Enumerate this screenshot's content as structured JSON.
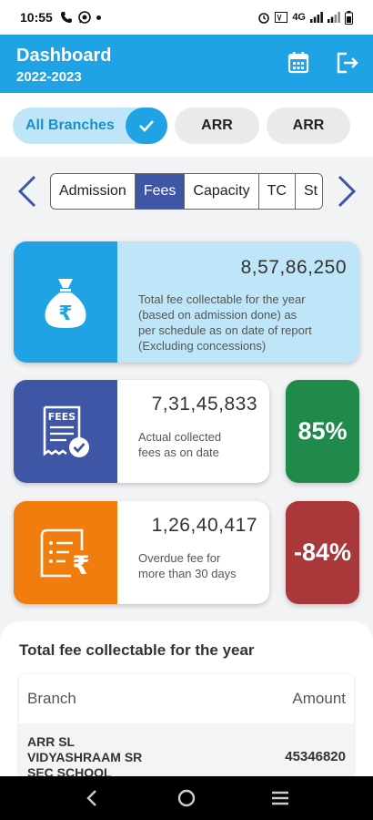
{
  "status_bar": {
    "time": "10:55",
    "network": "4G"
  },
  "header": {
    "title": "Dashboard",
    "year": "2022-2023",
    "icons": [
      "calendar-icon",
      "logout-icon"
    ]
  },
  "branches": {
    "items": [
      {
        "label": "All Branches",
        "selected": true
      },
      {
        "label": "ARR",
        "selected": false
      },
      {
        "label": "ARR",
        "selected": false
      }
    ]
  },
  "tabs": {
    "items": [
      {
        "label": "Admission",
        "active": false
      },
      {
        "label": "Fees",
        "active": true
      },
      {
        "label": "Capacity",
        "active": false
      },
      {
        "label": "TC",
        "active": false
      },
      {
        "label": "St",
        "active": false
      }
    ]
  },
  "cards": {
    "total": {
      "amount": "8,57,86,250",
      "desc_lines": [
        "Total fee collectable for the year",
        "(based on admission done) as",
        "per schedule as on date of report",
        "(Excluding concessions)"
      ],
      "icon": "money-bag-rupee-icon",
      "color": "#1fa3e4"
    },
    "collected": {
      "amount": "7,31,45,833",
      "desc_lines": [
        "Actual collected",
        "fees as on date"
      ],
      "icon": "fees-receipt-icon",
      "color": "#3f56a6",
      "percent": "85%",
      "percent_color": "#1f8a4a"
    },
    "overdue": {
      "amount": "1,26,40,417",
      "desc_lines": [
        "Overdue fee for",
        "more than 30 days"
      ],
      "icon": "rupee-invoice-icon",
      "color": "#f07d0e",
      "percent": "-84%",
      "percent_color": "#a8383a"
    }
  },
  "panel": {
    "title": "Total fee collectable for the year",
    "table": {
      "headers": [
        "Branch",
        "Amount"
      ],
      "rows": [
        {
          "branch_lines": [
            "ARR SL",
            "VIDYASHRAAM SR",
            "SEC SCHOOL"
          ],
          "amount": "45346820"
        }
      ]
    }
  }
}
